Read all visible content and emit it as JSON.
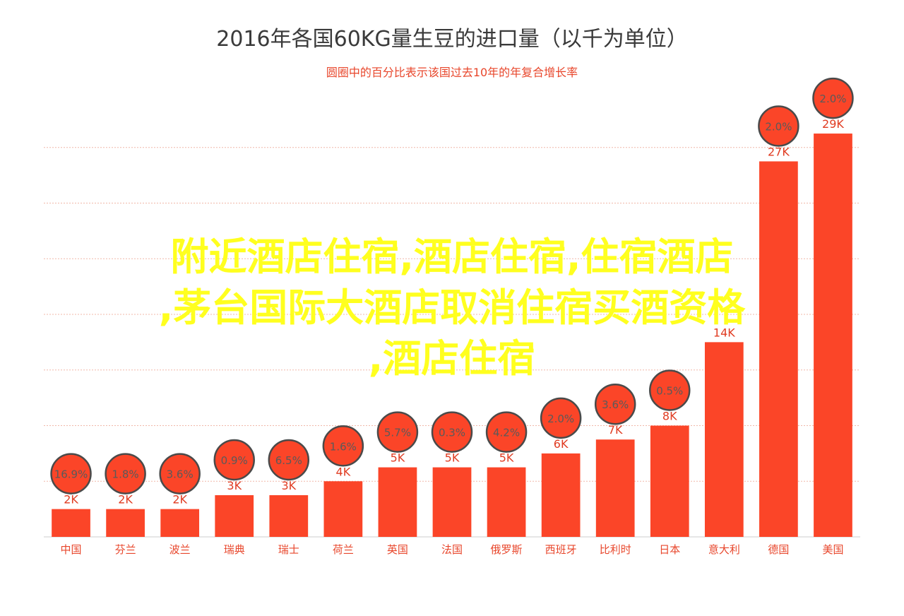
{
  "title": "2016年各国60KG量生豆的进口量（以千为单位）",
  "subtitle": "圆圈中的百分比表示该国过去10年的年复合增长率",
  "overlay_text": {
    "line1": "附近酒店住宿,酒店住宿,住宿酒店",
    "line2": ",茅台国际大酒店取消住宿买酒资格",
    "line3": ",酒店住宿"
  },
  "colors": {
    "bar": "#fb4528",
    "circle_fill": "#fb4528",
    "circle_stroke": "#4a4a4a",
    "circle_text": "#5a5a5a",
    "label": "#e03c22",
    "category": "#e8462b",
    "grid": "#f0b7a8",
    "overlay": "#ffff1f"
  },
  "chart_data": {
    "type": "bar",
    "title": "2016年各国60KG量生豆的进口量（以千为单位）",
    "subtitle": "圆圈中的百分比表示该国过去10年的年复合增长率",
    "categories": [
      "中国",
      "芬兰",
      "波兰",
      "瑞典",
      "瑞士",
      "荷兰",
      "英国",
      "法国",
      "俄罗斯",
      "西班牙",
      "比利时",
      "日本",
      "意大利",
      "德国",
      "美国"
    ],
    "values": [
      2,
      2,
      2,
      3,
      3,
      4,
      5,
      5,
      5,
      6,
      7,
      8,
      14,
      27,
      29
    ],
    "value_labels": [
      "2K",
      "2K",
      "2K",
      "3K",
      "3K",
      "4K",
      "5K",
      "5K",
      "5K",
      "6K",
      "7K",
      "8K",
      "14K",
      "27K",
      "29K"
    ],
    "growth_labels": [
      "16.9%",
      "1.8%",
      "3.6%",
      "0.9%",
      "6.5%",
      "1.6%",
      "5.7%",
      "0.3%",
      "4.2%",
      "2.0%",
      "3.6%",
      "0.5%",
      "",
      "2.0%",
      "2.0%"
    ],
    "ylim": [
      0,
      32
    ],
    "grid": true
  }
}
